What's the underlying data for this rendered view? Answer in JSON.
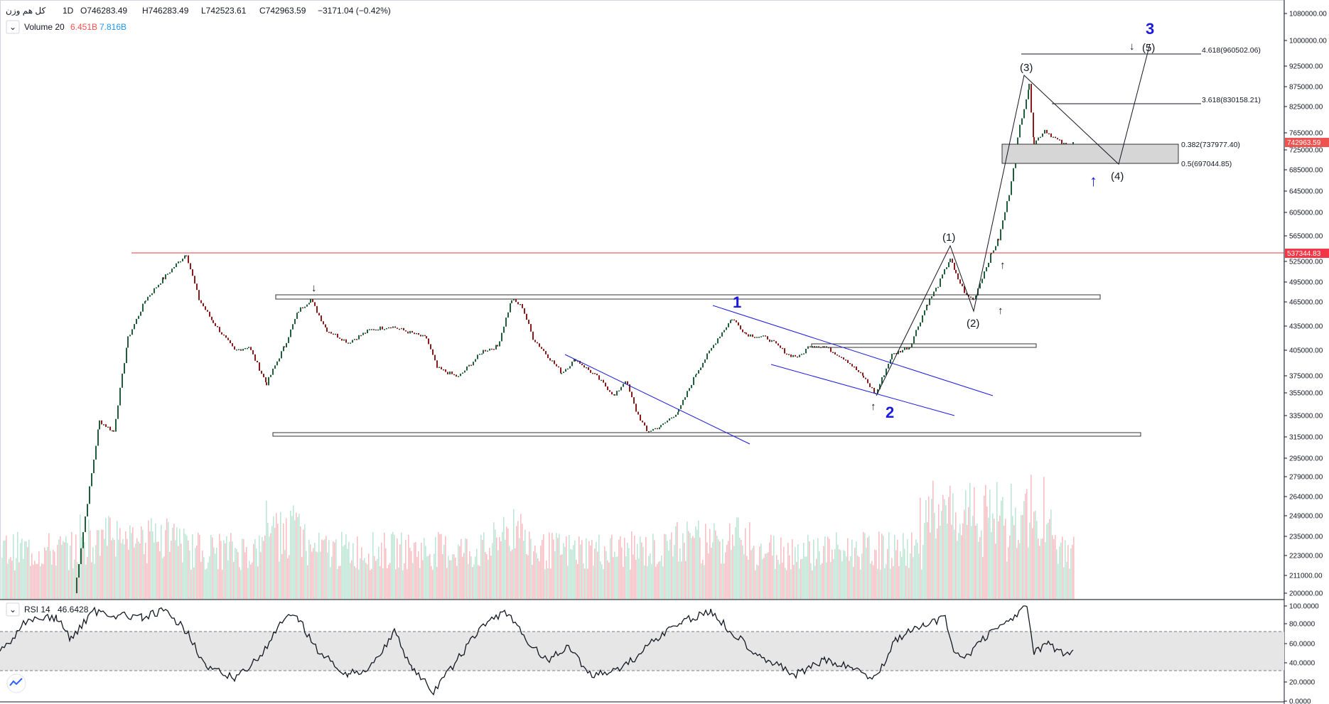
{
  "header": {
    "symbol": "کل هم وزن",
    "interval": "1D",
    "open": "O746283.49",
    "high": "H746283.49",
    "low": "L742523.61",
    "close": "C742963.59",
    "change": "−3171.04 (−0.42%)",
    "volume_label": "Volume 20",
    "volume_val1": "6.451B",
    "volume_val2": "7.816B",
    "rsi_label": "RSI 14",
    "rsi_value": "46.6428"
  },
  "colors": {
    "up": "#26a69a",
    "down": "#ef5350",
    "vol_up": "#bfe6d6",
    "vol_down": "#f7c0c5",
    "blue": "#1a1ae0",
    "red_line": "#f23645",
    "dark_green": "#1f5f3a",
    "dark_red": "#8b1a1a"
  },
  "price_axis": [
    "1080000.00",
    "1000000.00",
    "925000.00",
    "875000.00",
    "825000.00",
    "765000.00",
    "725000.00",
    "685000.00",
    "645000.00",
    "605000.00",
    "565000.00",
    "525000.00",
    "495000.00",
    "465000.00",
    "435000.00",
    "405000.00",
    "375000.00",
    "355000.00",
    "335000.00",
    "315000.00",
    "295000.00",
    "279000.00",
    "264000.00",
    "249000.00",
    "235000.00",
    "223000.00",
    "211000.00",
    "200000.00"
  ],
  "rsi_axis": [
    "100.0000",
    "80.0000",
    "60.0000",
    "40.0000",
    "20.0000",
    "0.0000"
  ],
  "price_tags": {
    "current": "742963.59",
    "resistance": "537344.83"
  },
  "fib_levels": [
    {
      "label": "4.618(960502.06)"
    },
    {
      "label": "3.618(830158.21)"
    },
    {
      "label": "0.382(737977.40)"
    },
    {
      "label": "0.5(697044.85)"
    }
  ],
  "wave_labels": {
    "w1": "(1)",
    "w2": "(2)",
    "w3": "(3)",
    "w4": "(4)",
    "w5": "(5)",
    "big1": "1",
    "big2": "2",
    "big3": "3"
  },
  "chart_data": {
    "type": "line",
    "title": "کل هم وزن",
    "interval": "1D",
    "price_series_key_points": [
      {
        "label": "start",
        "price": 200000
      },
      {
        "label": "peak-1",
        "price": 537000
      },
      {
        "label": "low-a",
        "price": 365000
      },
      {
        "label": "peak-b",
        "price": 470000
      },
      {
        "label": "peak-c",
        "price": 470000
      },
      {
        "label": "low-d",
        "price": 318000
      },
      {
        "label": "wave 1",
        "price": 445000
      },
      {
        "label": "wave 2",
        "price": 355000
      },
      {
        "label": "(1)",
        "price": 530000
      },
      {
        "label": "(2)",
        "price": 470000
      },
      {
        "label": "(3)",
        "price": 875000
      },
      {
        "label": "last",
        "price": 742963.59
      }
    ],
    "fibonacci": [
      {
        "ratio": 4.618,
        "price": 960502.06
      },
      {
        "ratio": 3.618,
        "price": 830158.21
      },
      {
        "ratio": 0.382,
        "price": 737977.4
      },
      {
        "ratio": 0.5,
        "price": 697044.85
      }
    ],
    "horizontal_line": 537344.83,
    "y_scale": "log",
    "ylim": [
      200000,
      1080000
    ],
    "rsi": {
      "period": 14,
      "last": 46.6428,
      "ylim": [
        0,
        100
      ],
      "band": [
        30,
        70
      ]
    },
    "volume": {
      "period": 20,
      "values_label": [
        "6.451B",
        "7.816B"
      ]
    }
  }
}
